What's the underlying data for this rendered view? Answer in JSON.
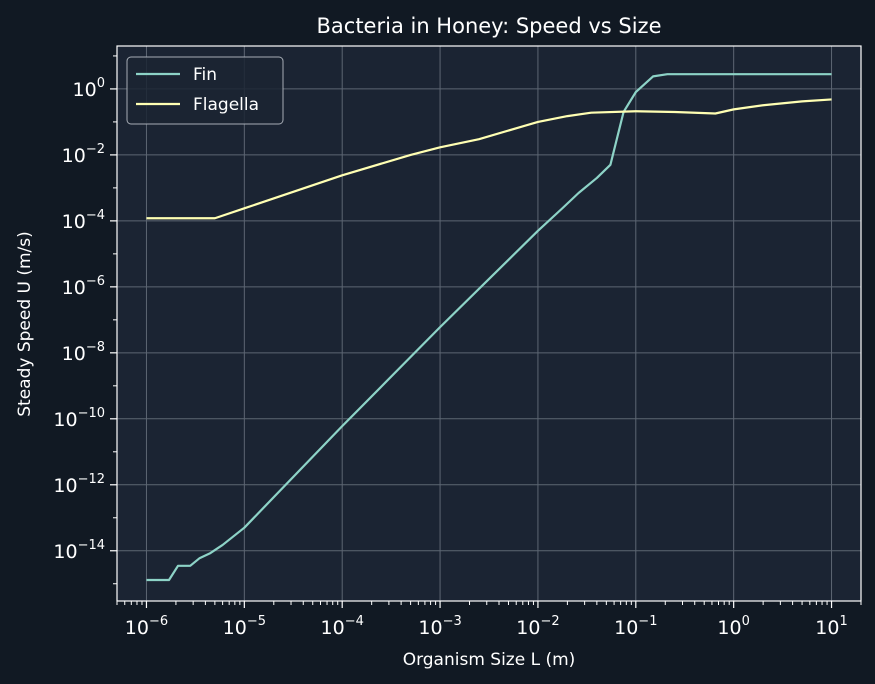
{
  "chart_data": {
    "type": "line",
    "title": "Bacteria in Honey: Speed vs Size",
    "xlabel": "Organism Size L (m)",
    "ylabel": "Steady Speed U (m/s)",
    "xscale": "log",
    "yscale": "log",
    "xlim": [
      5e-07,
      20
    ],
    "ylim": [
      3e-16,
      20
    ],
    "grid": true,
    "legend_position": "top-left",
    "colors": {
      "background": "#111923",
      "plot_background": "#1b2433",
      "grid": "#5d6673",
      "axes": "#ffffff",
      "text": "#ffffff"
    },
    "xticks": [
      {
        "base": "10",
        "exp": "−6",
        "value": 1e-06
      },
      {
        "base": "10",
        "exp": "−5",
        "value": 1e-05
      },
      {
        "base": "10",
        "exp": "−4",
        "value": 0.0001
      },
      {
        "base": "10",
        "exp": "−3",
        "value": 0.001
      },
      {
        "base": "10",
        "exp": "−2",
        "value": 0.01
      },
      {
        "base": "10",
        "exp": "−1",
        "value": 0.1
      },
      {
        "base": "10",
        "exp": "0",
        "value": 1
      },
      {
        "base": "10",
        "exp": "1",
        "value": 10
      }
    ],
    "yticks": [
      {
        "base": "10",
        "exp": "−14",
        "value": 1e-14
      },
      {
        "base": "10",
        "exp": "−12",
        "value": 1e-12
      },
      {
        "base": "10",
        "exp": "−10",
        "value": 1e-10
      },
      {
        "base": "10",
        "exp": "−8",
        "value": 1e-08
      },
      {
        "base": "10",
        "exp": "−6",
        "value": 1e-06
      },
      {
        "base": "10",
        "exp": "−4",
        "value": 0.0001
      },
      {
        "base": "10",
        "exp": "−2",
        "value": 0.01
      },
      {
        "base": "10",
        "exp": "0",
        "value": 1
      }
    ],
    "series": [
      {
        "name": "Fin",
        "color": "#8dd3c7",
        "x": [
          1e-06,
          1.7e-06,
          2.1e-06,
          2.8e-06,
          3.5e-06,
          4.5e-06,
          6e-06,
          1e-05,
          0.0001,
          0.001,
          0.01,
          0.018,
          0.026,
          0.04,
          0.055,
          0.075,
          0.1,
          0.15,
          0.21,
          1,
          10
        ],
        "y": [
          1.3e-15,
          1.3e-15,
          3.5e-15,
          3.5e-15,
          6e-15,
          8.5e-15,
          1.5e-14,
          5e-14,
          6e-11,
          6e-08,
          5e-05,
          0.00025,
          0.0007,
          0.002,
          0.005,
          0.2,
          0.8,
          2.4,
          2.8,
          2.8,
          2.8
        ]
      },
      {
        "name": "Flagella",
        "color": "#ffffb3",
        "x": [
          1e-06,
          5e-06,
          1e-05,
          0.0001,
          0.0005,
          0.001,
          0.0025,
          0.01,
          0.02,
          0.035,
          0.1,
          0.25,
          0.65,
          1,
          2,
          5,
          10
        ],
        "y": [
          0.00012,
          0.00012,
          0.00024,
          0.0024,
          0.01,
          0.017,
          0.03,
          0.1,
          0.15,
          0.19,
          0.21,
          0.2,
          0.18,
          0.24,
          0.32,
          0.42,
          0.48
        ]
      }
    ]
  }
}
